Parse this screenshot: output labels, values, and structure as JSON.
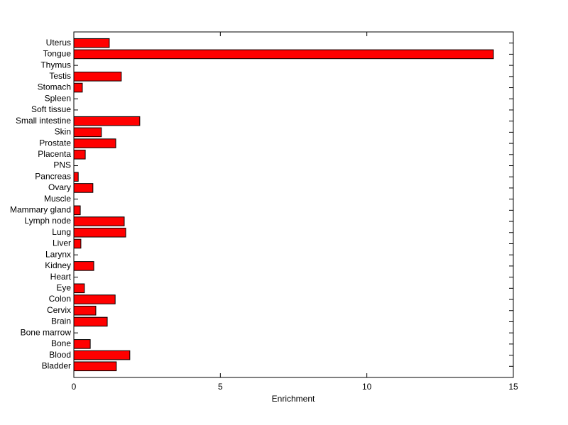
{
  "chart_data": {
    "type": "barh",
    "xlabel": "Enrichment",
    "categories": [
      "Bladder",
      "Blood",
      "Bone",
      "Bone marrow",
      "Brain",
      "Cervix",
      "Colon",
      "Eye",
      "Heart",
      "Kidney",
      "Larynx",
      "Liver",
      "Lung",
      "Lymph node",
      "Mammary gland",
      "Muscle",
      "Ovary",
      "Pancreas",
      "PNS",
      "Placenta",
      "Prostate",
      "Skin",
      "Small intestine",
      "Soft tissue",
      "Spleen",
      "Stomach",
      "Testis",
      "Thymus",
      "Tongue",
      "Uterus"
    ],
    "values": [
      1.45,
      1.91,
      0.56,
      0,
      1.14,
      0.75,
      1.41,
      0.36,
      0,
      0.68,
      0,
      0.24,
      1.77,
      1.72,
      0.22,
      0,
      0.65,
      0.15,
      0,
      0.39,
      1.43,
      0.94,
      2.25,
      0,
      0,
      0.29,
      1.62,
      0,
      14.32,
      1.21
    ],
    "color": "#ff0000",
    "xlim": [
      0,
      15
    ],
    "xticks": [
      0,
      5,
      10,
      15
    ]
  }
}
